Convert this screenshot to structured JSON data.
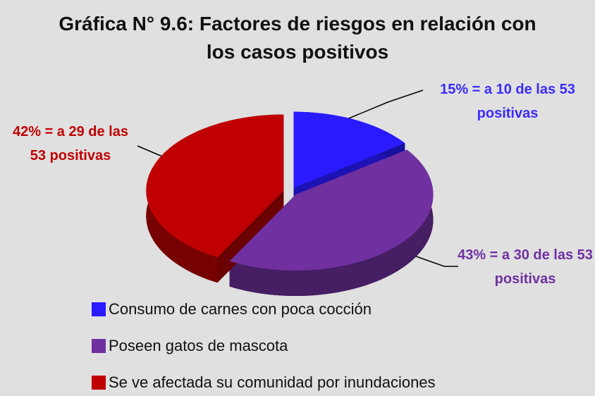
{
  "chart_data": {
    "type": "pie",
    "title": "Gráfica N° 9.6: Factores de riesgos en relación con los casos positivos",
    "categories": [
      "Consumo de carnes con poca cocción",
      "Poseen gatos de mascota",
      "Se ve afectada su comunidad por inundaciones"
    ],
    "values": [
      15,
      43,
      42
    ],
    "value_labels": [
      "15% = a 10 de las 53 positivas",
      "43% = a 30 de las 53 positivas",
      "42% = a 29 de las 53 positivas"
    ],
    "colors": [
      "#2a1aff",
      "#7030a0",
      "#c00000"
    ],
    "legend": "bottom"
  }
}
